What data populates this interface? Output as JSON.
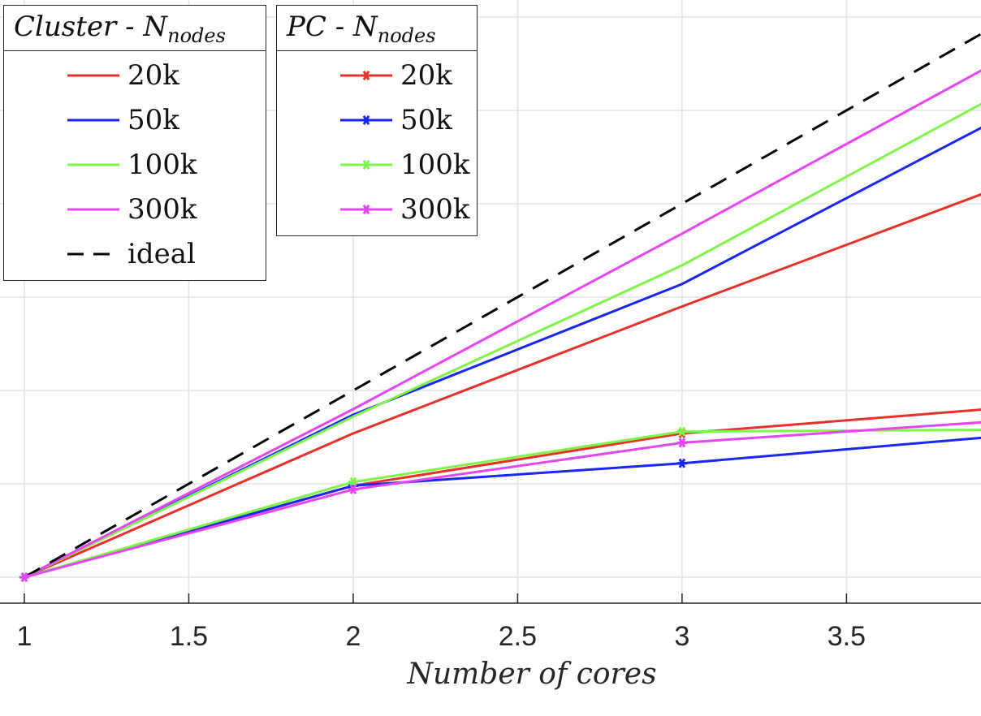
{
  "chart_data": {
    "type": "line",
    "xlabel": "Number of cores",
    "ylabel": "",
    "xlim": [
      0.926,
      3.909
    ],
    "ylim": [
      0.861,
      4.091
    ],
    "grid": true,
    "xticks": [
      1,
      1.5,
      2,
      2.5,
      3,
      3.5
    ],
    "xtick_labels": [
      "1",
      "1.5",
      "2",
      "2.5",
      "3",
      "3.5"
    ],
    "yticks": [
      1,
      1.5,
      2,
      2.5,
      3,
      3.5,
      4
    ],
    "x": [
      1,
      2,
      3,
      4
    ],
    "legends": [
      {
        "title": "Cluster",
        "title_sub": "N",
        "title_subscript": "nodes",
        "placement": "top-left"
      },
      {
        "title": "PC",
        "title_sub": "N",
        "title_subscript": "nodes",
        "placement": "top-left"
      }
    ],
    "series": [
      {
        "group": "cluster",
        "name": "20k",
        "color": "#e8302a",
        "marker": "none",
        "values": [
          1,
          1.77,
          2.45,
          3.11
        ]
      },
      {
        "group": "cluster",
        "name": "50k",
        "color": "#1a26f5",
        "marker": "none",
        "values": [
          1,
          1.87,
          2.57,
          3.49
        ]
      },
      {
        "group": "cluster",
        "name": "100k",
        "color": "#7ff54a",
        "marker": "none",
        "values": [
          1,
          1.86,
          2.67,
          3.62
        ]
      },
      {
        "group": "cluster",
        "name": "300k",
        "color": "#e545f2",
        "marker": "none",
        "values": [
          1,
          1.9,
          2.84,
          3.8
        ]
      },
      {
        "group": "cluster",
        "name": "ideal",
        "color": "#000000",
        "marker": "none",
        "dash": true,
        "values": [
          1,
          2,
          3,
          4
        ]
      },
      {
        "group": "pc",
        "name": "20k",
        "color": "#e8302a",
        "marker": "asterisk",
        "values": [
          1,
          1.49,
          1.77,
          1.91
        ]
      },
      {
        "group": "pc",
        "name": "50k",
        "color": "#1a26f5",
        "marker": "asterisk",
        "values": [
          1,
          1.49,
          1.61,
          1.76
        ]
      },
      {
        "group": "pc",
        "name": "100k",
        "color": "#7ff54a",
        "marker": "asterisk",
        "values": [
          1,
          1.51,
          1.78,
          1.79
        ]
      },
      {
        "group": "pc",
        "name": "300k",
        "color": "#e545f2",
        "marker": "asterisk",
        "values": [
          1,
          1.47,
          1.72,
          1.84
        ]
      }
    ]
  }
}
